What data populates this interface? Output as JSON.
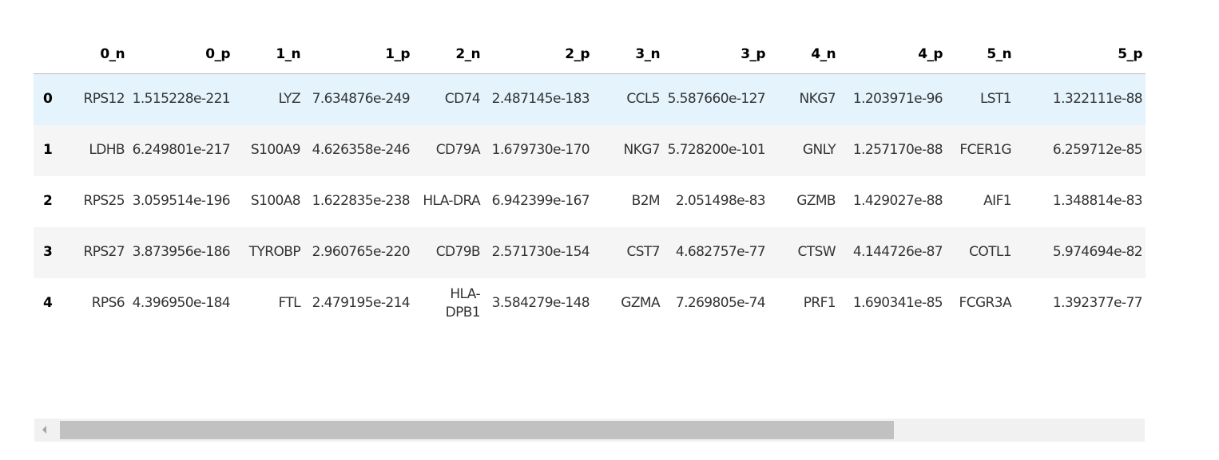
{
  "table": {
    "columns": [
      "",
      "0_n",
      "0_p",
      "1_n",
      "1_p",
      "2_n",
      "2_p",
      "3_n",
      "3_p",
      "4_n",
      "4_p",
      "5_n",
      "5_p"
    ],
    "rows": [
      {
        "index": "0",
        "cells": [
          "RPS12",
          "1.515228e-221",
          "LYZ",
          "7.634876e-249",
          "CD74",
          "2.487145e-183",
          "CCL5",
          "5.587660e-127",
          "NKG7",
          "1.203971e-96",
          "LST1",
          "1.322111e-88"
        ]
      },
      {
        "index": "1",
        "cells": [
          "LDHB",
          "6.249801e-217",
          "S100A9",
          "4.626358e-246",
          "CD79A",
          "1.679730e-170",
          "NKG7",
          "5.728200e-101",
          "GNLY",
          "1.257170e-88",
          "FCER1G",
          "6.259712e-85"
        ]
      },
      {
        "index": "2",
        "cells": [
          "RPS25",
          "3.059514e-196",
          "S100A8",
          "1.622835e-238",
          "HLA-DRA",
          "6.942399e-167",
          "B2M",
          "2.051498e-83",
          "GZMB",
          "1.429027e-88",
          "AIF1",
          "1.348814e-83"
        ]
      },
      {
        "index": "3",
        "cells": [
          "RPS27",
          "3.873956e-186",
          "TYROBP",
          "2.960765e-220",
          "CD79B",
          "2.571730e-154",
          "CST7",
          "4.682757e-77",
          "CTSW",
          "4.144726e-87",
          "COTL1",
          "5.974694e-82"
        ]
      },
      {
        "index": "4",
        "cells": [
          "RPS6",
          "4.396950e-184",
          "FTL",
          "2.479195e-214",
          "HLA-DPB1",
          "3.584279e-148",
          "GZMA",
          "7.269805e-74",
          "PRF1",
          "1.690341e-85",
          "FCGR3A",
          "1.392377e-77"
        ]
      }
    ],
    "selected_row": 0
  },
  "scrollbar": {
    "orientation": "horizontal",
    "thumb_fraction": 0.77,
    "position_fraction": 0.0
  },
  "colors": {
    "selected_row": "#e4f3fc",
    "striped_row": "#f5f5f5",
    "scroll_track": "#f1f1f1",
    "scroll_thumb": "#c1c1c1"
  }
}
